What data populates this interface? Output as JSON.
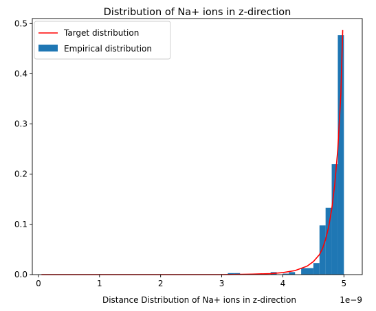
{
  "chart_data": {
    "type": "bar",
    "title": "Distribution of Na+ ions in z-direction",
    "xlabel": "Distance Distribution of Na+ ions in z-direction",
    "ylabel": "",
    "x_offset_label": "1e−9",
    "xlim": [
      -0.1,
      5.3
    ],
    "ylim": [
      0,
      0.51
    ],
    "xticks": [
      0,
      1,
      2,
      3,
      4,
      5
    ],
    "xtick_labels": [
      "0",
      "1",
      "2",
      "3",
      "4",
      "5"
    ],
    "yticks": [
      0.0,
      0.1,
      0.2,
      0.3,
      0.4,
      0.5
    ],
    "ytick_labels": [
      "0.0",
      "0.1",
      "0.2",
      "0.3",
      "0.4",
      "0.5"
    ],
    "grid": false,
    "legend_position": "top-left",
    "colors": {
      "bars": "#1f77b4",
      "line": "#ff0000"
    },
    "series": [
      {
        "name": "Target distribution",
        "type": "line",
        "x": [
          0.05,
          1.0,
          2.0,
          3.0,
          3.5,
          3.8,
          4.0,
          4.2,
          4.4,
          4.5,
          4.6,
          4.65,
          4.7,
          4.75,
          4.8,
          4.85,
          4.9,
          4.95,
          4.98
        ],
        "values": [
          0.0,
          0.0,
          0.0,
          0.0,
          0.001,
          0.002,
          0.004,
          0.008,
          0.017,
          0.026,
          0.04,
          0.052,
          0.07,
          0.095,
          0.13,
          0.18,
          0.25,
          0.36,
          0.487
        ]
      },
      {
        "name": "Empirical distribution",
        "type": "bar",
        "bin_width": 0.1,
        "x": [
          3.15,
          3.25,
          3.55,
          3.85,
          4.05,
          4.15,
          4.35,
          4.45,
          4.55,
          4.65,
          4.75,
          4.85,
          4.95
        ],
        "values": [
          0.003,
          0.003,
          0.002,
          0.005,
          0.002,
          0.005,
          0.013,
          0.013,
          0.023,
          0.098,
          0.133,
          0.22,
          0.477
        ]
      }
    ]
  }
}
